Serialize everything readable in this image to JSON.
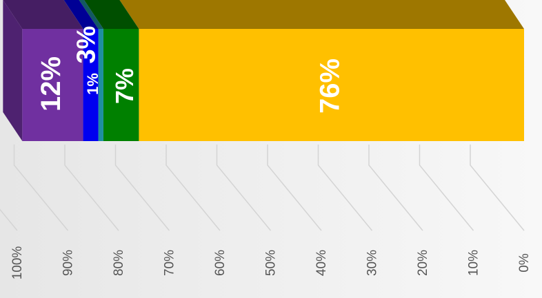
{
  "chart_data": {
    "type": "bar",
    "orientation": "horizontal",
    "stacked": true,
    "categories": [
      null
    ],
    "series": [
      {
        "name": null,
        "color": "#FFC000",
        "values": [
          76
        ],
        "value_labels": [
          "76%"
        ]
      },
      {
        "name": null,
        "color": "#008000",
        "values": [
          7
        ],
        "value_labels": [
          "7%"
        ]
      },
      {
        "name": null,
        "color": "#1E8FA0",
        "values": [
          1
        ],
        "value_labels": [
          "1%"
        ]
      },
      {
        "name": null,
        "color": "#0000F0",
        "values": [
          3
        ],
        "value_labels": [
          "3%"
        ]
      },
      {
        "name": null,
        "color": "#7030A0",
        "values": [
          12
        ],
        "value_labels": [
          "12%"
        ]
      }
    ],
    "xlim": [
      0,
      100
    ],
    "xticks": [
      {
        "value": 0,
        "label": "0%"
      },
      {
        "value": 10,
        "label": "10%"
      },
      {
        "value": 20,
        "label": "20%"
      },
      {
        "value": 30,
        "label": "30%"
      },
      {
        "value": 40,
        "label": "40%"
      },
      {
        "value": 50,
        "label": "50%"
      },
      {
        "value": 60,
        "label": "60%"
      },
      {
        "value": 70,
        "label": "70%"
      },
      {
        "value": 80,
        "label": "80%"
      },
      {
        "value": 90,
        "label": "90%"
      },
      {
        "value": 100,
        "label": "100%"
      }
    ],
    "x_reversed": true,
    "grid": true
  }
}
